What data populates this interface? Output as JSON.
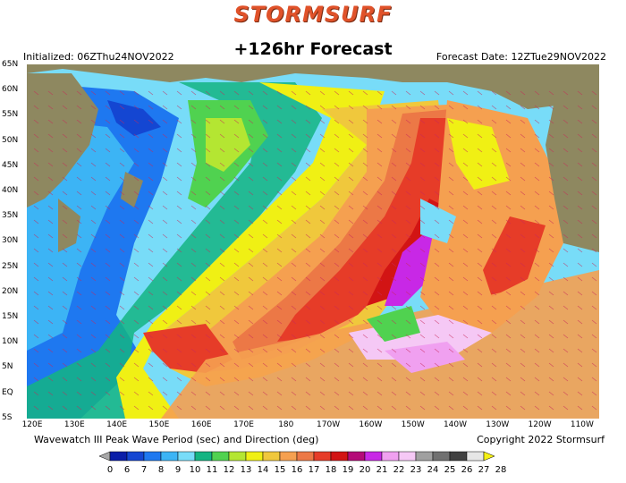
{
  "header": {
    "brand": "STORMSURF",
    "forecast": "+126hr Forecast",
    "initialized": "Initialized: 06ZThu24NOV2022",
    "forecast_date": "Forecast Date: 12ZTue29NOV2022"
  },
  "footer": {
    "caption": "Wavewatch III Peak Wave Period (sec) and Direction (deg)",
    "copyright": "Copyright 2022 Stormsurf"
  },
  "lat_labels": [
    "65N",
    "60N",
    "55N",
    "50N",
    "45N",
    "40N",
    "35N",
    "30N",
    "25N",
    "20N",
    "15N",
    "10N",
    "5N",
    "EQ",
    "5S"
  ],
  "lon_labels": [
    "120E",
    "130E",
    "140E",
    "150E",
    "160E",
    "170E",
    "180",
    "170W",
    "160W",
    "150W",
    "140W",
    "130W",
    "120W",
    "110W"
  ],
  "legend": {
    "values": [
      "0",
      "6",
      "7",
      "8",
      "9",
      "10",
      "11",
      "12",
      "13",
      "14",
      "15",
      "16",
      "17",
      "18",
      "19",
      "20",
      "21",
      "22",
      "23",
      "24",
      "25",
      "26",
      "27",
      "28"
    ],
    "colors": [
      "#a8a8a8",
      "#0a1ea8",
      "#1446d2",
      "#1e78f0",
      "#3cb4f5",
      "#78dcf8",
      "#14b482",
      "#50d250",
      "#b4e632",
      "#f0f014",
      "#f0c83c",
      "#f5a050",
      "#ec7846",
      "#e63c28",
      "#d21414",
      "#b40a78",
      "#c828e6",
      "#f0a0f0",
      "#f5c8f5",
      "#a0a0a0",
      "#707070",
      "#404040",
      "#e6e6e6",
      "#f5f014"
    ]
  },
  "colors": {
    "land": "#8e8860",
    "ocean_short": "#3cb4f5",
    "ocean_long": "#f0c83c"
  }
}
